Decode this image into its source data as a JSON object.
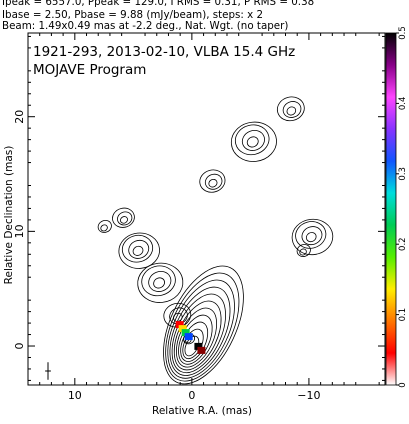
{
  "header": {
    "line1": "Ipeak = 6557.0, Ppeak = 129.0, I RMS = 0.31, P RMS = 0.38",
    "line2": "Ibase = 2.50, Pbase = 9.88 (mJy/beam), steps: x 2",
    "line3": "Beam: 1.49x0.49 mas at -2.2 deg., Nat. Wgt. (no taper)"
  },
  "chart_data": {
    "type": "contour",
    "title": "1921-293, 2013-02-10, VLBA 15.4 GHz",
    "subtitle": "MOJAVE Program",
    "xlabel": "Relative R.A. (mas)",
    "ylabel": "Relative Declination (mas)",
    "xlim": [
      14.0,
      -16.5
    ],
    "ylim": [
      -3.4,
      27.3
    ],
    "xticks": [
      10,
      0,
      -10
    ],
    "yticks": [
      0,
      10,
      20
    ],
    "colorbar": {
      "ticks": [
        0,
        0.1,
        0.2,
        0.3,
        0.4,
        0.5
      ],
      "range": [
        0,
        0.5
      ],
      "colors": [
        "#ffffff",
        "#ff0000",
        "#ff7700",
        "#ffee00",
        "#55ee00",
        "#00cc55",
        "#00dddd",
        "#1155ff",
        "#8833ff",
        "#ff44ff",
        "#880088",
        "#000000"
      ]
    },
    "contour_levels_mjy": [
      2.5,
      5,
      10,
      20,
      40,
      80,
      160,
      320,
      640,
      1280,
      2560,
      5120
    ],
    "core": {
      "ra": 0.0,
      "dec": 0.0
    },
    "jet_components": [
      {
        "ra": 0.3,
        "dec": 0.5,
        "size": 1.0
      },
      {
        "ra": 1.2,
        "dec": 2.5,
        "size": 1.6
      },
      {
        "ra": 2.8,
        "dec": 5.5,
        "size": 2.0
      },
      {
        "ra": 4.6,
        "dec": 8.3,
        "size": 1.8
      },
      {
        "ra": 5.8,
        "dec": 11.0,
        "size": 1.3
      },
      {
        "ra": 7.5,
        "dec": 10.3,
        "size": 1.2
      },
      {
        "ra": -1.8,
        "dec": 14.2,
        "size": 1.5
      },
      {
        "ra": -5.2,
        "dec": 17.8,
        "size": 2.0
      },
      {
        "ra": -8.5,
        "dec": 20.5,
        "size": 1.6
      },
      {
        "ra": -10.2,
        "dec": 9.5,
        "size": 1.8
      },
      {
        "ra": -9.5,
        "dec": 8.2,
        "size": 1.2
      }
    ],
    "polarization_regions": [
      {
        "ra": 0.7,
        "dec": 1.3,
        "colors": [
          "#ff0000",
          "#ffdd00",
          "#00cc44",
          "#0044ff"
        ]
      },
      {
        "ra": -0.9,
        "dec": -0.6,
        "colors": [
          "#000000",
          "#880000"
        ]
      }
    ],
    "beam": {
      "major_mas": 1.49,
      "minor_mas": 0.49,
      "pa_deg": -2.2
    }
  }
}
